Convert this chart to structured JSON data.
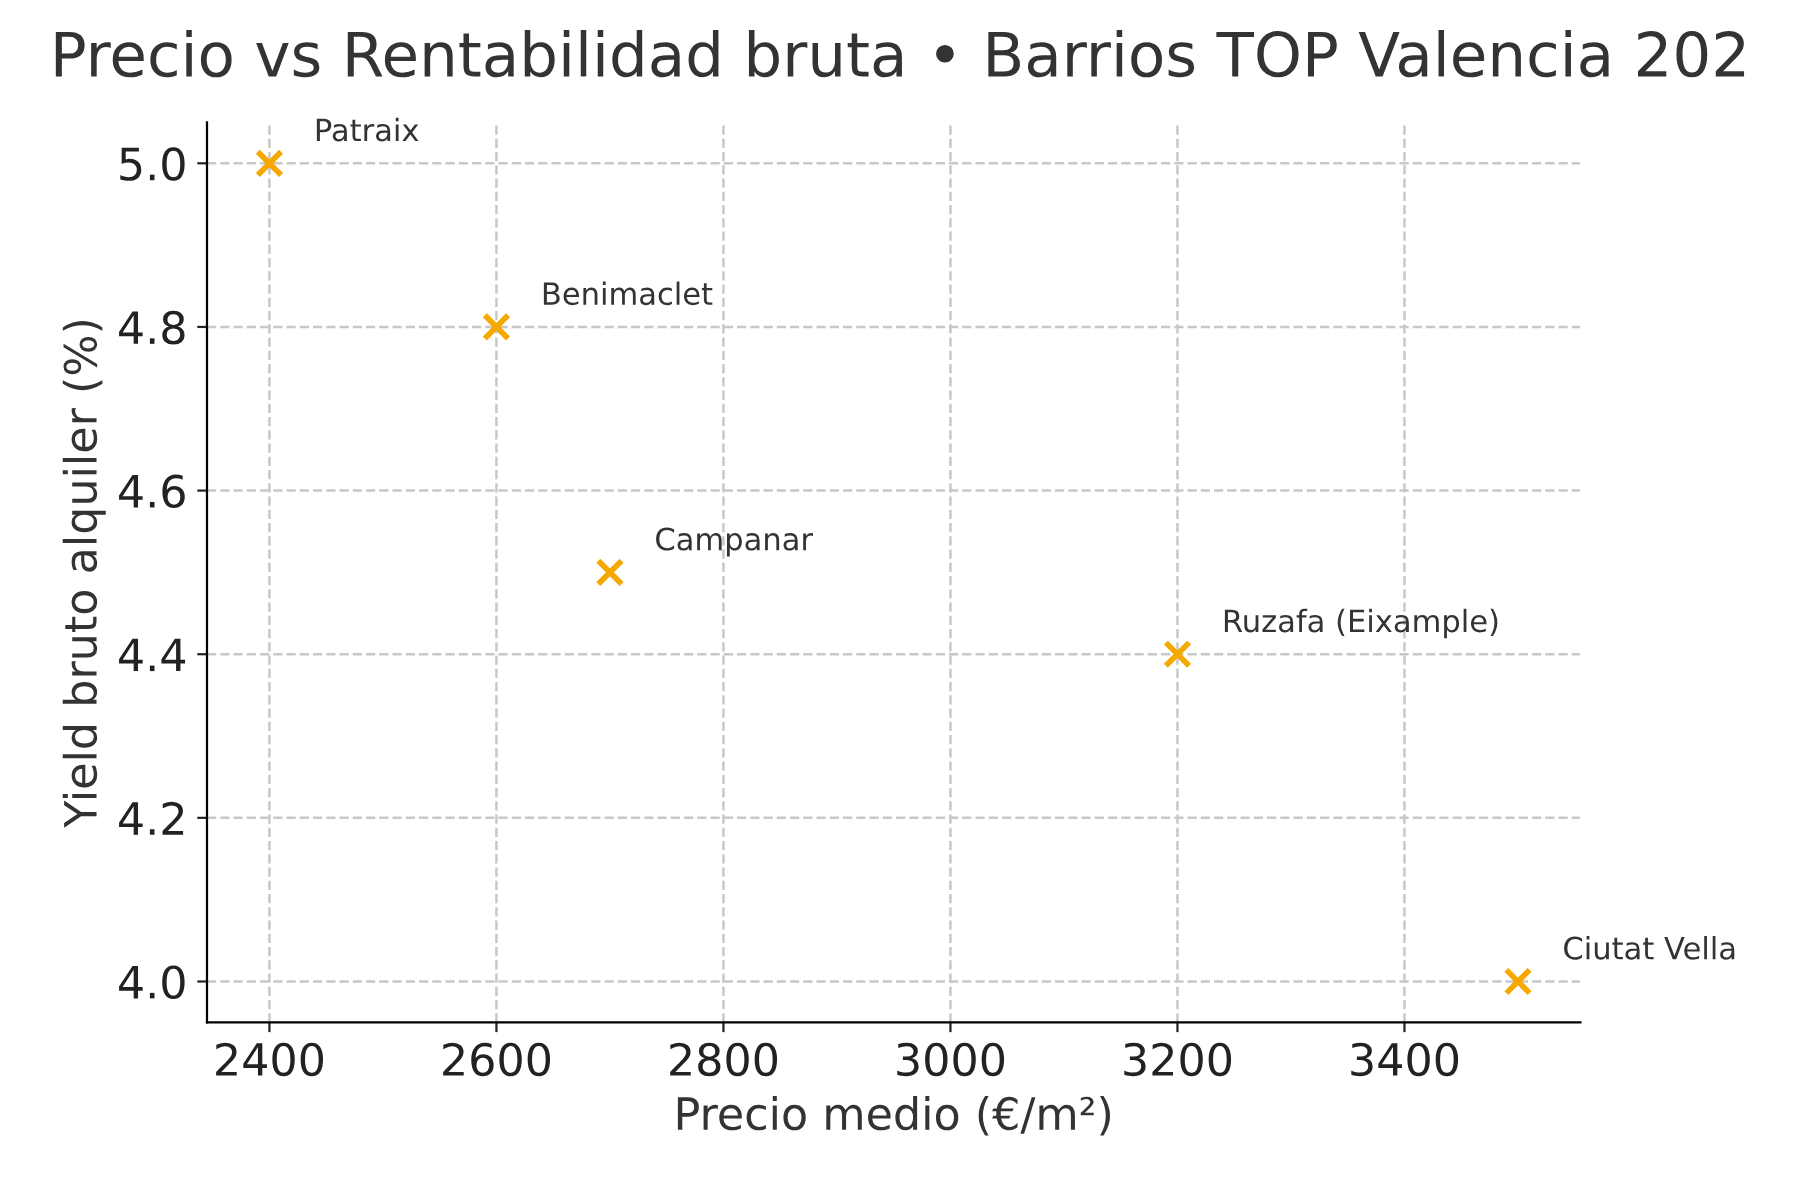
{
  "chart_data": {
    "type": "scatter",
    "title": "Precio vs Rentabilidad bruta • Barrios TOP Valencia 202",
    "xlabel": "Precio medio (€/m²)",
    "ylabel": "Yield bruto alquiler (%)",
    "x": [
      2400,
      2600,
      2700,
      3200,
      3500
    ],
    "values": [
      5.0,
      4.8,
      4.5,
      4.4,
      4.0
    ],
    "color": "#f5a800",
    "marker": "cross",
    "annotations": [
      {
        "text": "Patraix",
        "x": 2400,
        "y": 5.0
      },
      {
        "text": "Benimaclet",
        "x": 2600,
        "y": 4.8
      },
      {
        "text": "Campanar",
        "x": 2700,
        "y": 4.5
      },
      {
        "text": "Ruzafa (Eixample)",
        "x": 3200,
        "y": 4.4
      },
      {
        "text": "Ciutat Vella",
        "x": 3500,
        "y": 4.0
      }
    ],
    "xlim": [
      2345,
      3555
    ],
    "ylim": [
      3.95,
      5.05
    ],
    "xticks": [
      2400,
      2600,
      2800,
      3000,
      3200,
      3400
    ],
    "yticks": [
      {
        "value": 4.0,
        "label": "4.0"
      },
      {
        "value": 4.2,
        "label": "4.2"
      },
      {
        "value": 4.4,
        "label": "4.4"
      },
      {
        "value": 4.6,
        "label": "4.6"
      },
      {
        "value": 4.8,
        "label": "4.8"
      },
      {
        "value": 5.0,
        "label": "5.0"
      }
    ],
    "grid": true,
    "line_style": "dashed"
  }
}
